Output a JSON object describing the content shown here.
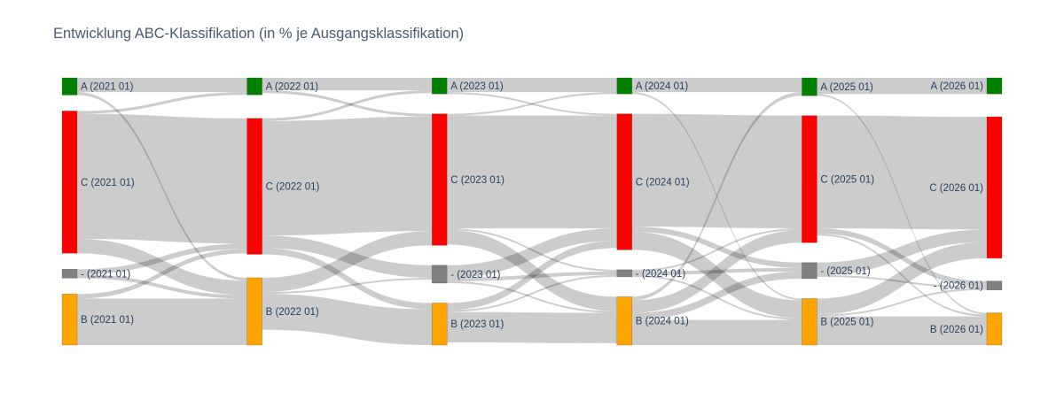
{
  "chart_data": {
    "type": "sankey",
    "title": "Entwicklung ABC-Klassifikation (in % je Ausgangsklassifikation)",
    "colors": {
      "A": "#008000",
      "C": "#ff0000",
      "-": "#808080",
      "B": "#ffa500",
      "link": "#cccccc"
    },
    "columns": [
      {
        "period": "2021 01",
        "nodes": [
          {
            "id": "A-2021",
            "label": "A (2021 01)",
            "class": "A"
          },
          {
            "id": "C-2021",
            "label": "C (2021 01)",
            "class": "C"
          },
          {
            "id": "X-2021",
            "label": "- (2021 01)",
            "class": "-"
          },
          {
            "id": "B-2021",
            "label": "B (2021 01)",
            "class": "B"
          }
        ]
      },
      {
        "period": "2022 01",
        "nodes": [
          {
            "id": "A-2022",
            "label": "A (2022 01)",
            "class": "A"
          },
          {
            "id": "C-2022",
            "label": "C (2022 01)",
            "class": "C"
          },
          {
            "id": "B-2022",
            "label": "B (2022 01)",
            "class": "B"
          }
        ]
      },
      {
        "period": "2023 01",
        "nodes": [
          {
            "id": "A-2023",
            "label": "A (2023 01)",
            "class": "A"
          },
          {
            "id": "C-2023",
            "label": "C (2023 01)",
            "class": "C"
          },
          {
            "id": "X-2023",
            "label": "- (2023 01)",
            "class": "-"
          },
          {
            "id": "B-2023",
            "label": "B (2023 01)",
            "class": "B"
          }
        ]
      },
      {
        "period": "2024 01",
        "nodes": [
          {
            "id": "A-2024",
            "label": "A (2024 01)",
            "class": "A"
          },
          {
            "id": "C-2024",
            "label": "C (2024 01)",
            "class": "C"
          },
          {
            "id": "X-2024",
            "label": "- (2024 01)",
            "class": "-"
          },
          {
            "id": "B-2024",
            "label": "B (2024 01)",
            "class": "B"
          }
        ]
      },
      {
        "period": "2025 01",
        "nodes": [
          {
            "id": "A-2025",
            "label": "A (2025 01)",
            "class": "A"
          },
          {
            "id": "C-2025",
            "label": "C (2025 01)",
            "class": "C"
          },
          {
            "id": "X-2025",
            "label": "- (2025 01)",
            "class": "-"
          },
          {
            "id": "B-2025",
            "label": "B (2025 01)",
            "class": "B"
          }
        ]
      },
      {
        "period": "2026 01",
        "nodes": [
          {
            "id": "A-2026",
            "label": "A (2026 01)",
            "class": "A"
          },
          {
            "id": "C-2026",
            "label": "C (2026 01)",
            "class": "C"
          },
          {
            "id": "X-2026",
            "label": "- (2026 01)",
            "class": "-"
          },
          {
            "id": "B-2026",
            "label": "B (2026 01)",
            "class": "B"
          }
        ]
      }
    ],
    "links": [
      {
        "source": "A-2021",
        "target": "A-2022",
        "value": 8
      },
      {
        "source": "A-2021",
        "target": "B-2022",
        "value": 1.6
      },
      {
        "source": "C-2021",
        "target": "A-2022",
        "value": 1.5
      },
      {
        "source": "C-2021",
        "target": "C-2022",
        "value": 70
      },
      {
        "source": "C-2021",
        "target": "B-2022",
        "value": 8
      },
      {
        "source": "X-2021",
        "target": "C-2022",
        "value": 3
      },
      {
        "source": "X-2021",
        "target": "B-2022",
        "value": 2
      },
      {
        "source": "B-2021",
        "target": "C-2022",
        "value": 2.5
      },
      {
        "source": "B-2021",
        "target": "B-2022",
        "value": 26
      },
      {
        "source": "A-2022",
        "target": "A-2023",
        "value": 7
      },
      {
        "source": "A-2022",
        "target": "C-2023",
        "value": 1.5
      },
      {
        "source": "C-2022",
        "target": "A-2023",
        "value": 1.5
      },
      {
        "source": "C-2022",
        "target": "C-2023",
        "value": 64
      },
      {
        "source": "C-2022",
        "target": "X-2023",
        "value": 7
      },
      {
        "source": "C-2022",
        "target": "B-2023",
        "value": 3.5
      },
      {
        "source": "B-2022",
        "target": "C-2023",
        "value": 8
      },
      {
        "source": "B-2022",
        "target": "X-2023",
        "value": 1
      },
      {
        "source": "B-2022",
        "target": "B-2023",
        "value": 20
      },
      {
        "source": "A-2023",
        "target": "A-2024",
        "value": 8
      },
      {
        "source": "A-2023",
        "target": "C-2024",
        "value": 1
      },
      {
        "source": "C-2023",
        "target": "A-2024",
        "value": 1
      },
      {
        "source": "C-2023",
        "target": "C-2024",
        "value": 63
      },
      {
        "source": "C-2023",
        "target": "X-2024",
        "value": 1
      },
      {
        "source": "C-2023",
        "target": "B-2024",
        "value": 8
      },
      {
        "source": "X-2023",
        "target": "C-2024",
        "value": 7
      },
      {
        "source": "X-2023",
        "target": "X-2024",
        "value": 2
      },
      {
        "source": "X-2023",
        "target": "B-2024",
        "value": 1
      },
      {
        "source": "B-2023",
        "target": "C-2024",
        "value": 4
      },
      {
        "source": "B-2023",
        "target": "X-2024",
        "value": 1
      },
      {
        "source": "B-2023",
        "target": "B-2024",
        "value": 17
      },
      {
        "source": "A-2024",
        "target": "A-2025",
        "value": 8
      },
      {
        "source": "A-2024",
        "target": "B-2025",
        "value": 1
      },
      {
        "source": "C-2024",
        "target": "C-2025",
        "value": 63
      },
      {
        "source": "C-2024",
        "target": "X-2025",
        "value": 3
      },
      {
        "source": "C-2024",
        "target": "B-2025",
        "value": 10
      },
      {
        "source": "X-2024",
        "target": "C-2025",
        "value": 1
      },
      {
        "source": "X-2024",
        "target": "X-2025",
        "value": 2
      },
      {
        "source": "X-2024",
        "target": "B-2025",
        "value": 1
      },
      {
        "source": "B-2024",
        "target": "A-2025",
        "value": 2
      },
      {
        "source": "B-2024",
        "target": "C-2025",
        "value": 7
      },
      {
        "source": "B-2024",
        "target": "X-2025",
        "value": 4
      },
      {
        "source": "B-2024",
        "target": "B-2025",
        "value": 14
      },
      {
        "source": "A-2025",
        "target": "A-2026",
        "value": 9
      },
      {
        "source": "A-2025",
        "target": "B-2026",
        "value": 1
      },
      {
        "source": "C-2025",
        "target": "C-2026",
        "value": 63
      },
      {
        "source": "C-2025",
        "target": "X-2026",
        "value": 3
      },
      {
        "source": "C-2025",
        "target": "B-2026",
        "value": 1
      },
      {
        "source": "X-2025",
        "target": "C-2026",
        "value": 7
      },
      {
        "source": "X-2025",
        "target": "X-2026",
        "value": 1
      },
      {
        "source": "B-2025",
        "target": "C-2026",
        "value": 9
      },
      {
        "source": "B-2025",
        "target": "X-2026",
        "value": 1
      },
      {
        "source": "B-2025",
        "target": "B-2026",
        "value": 16
      }
    ]
  }
}
